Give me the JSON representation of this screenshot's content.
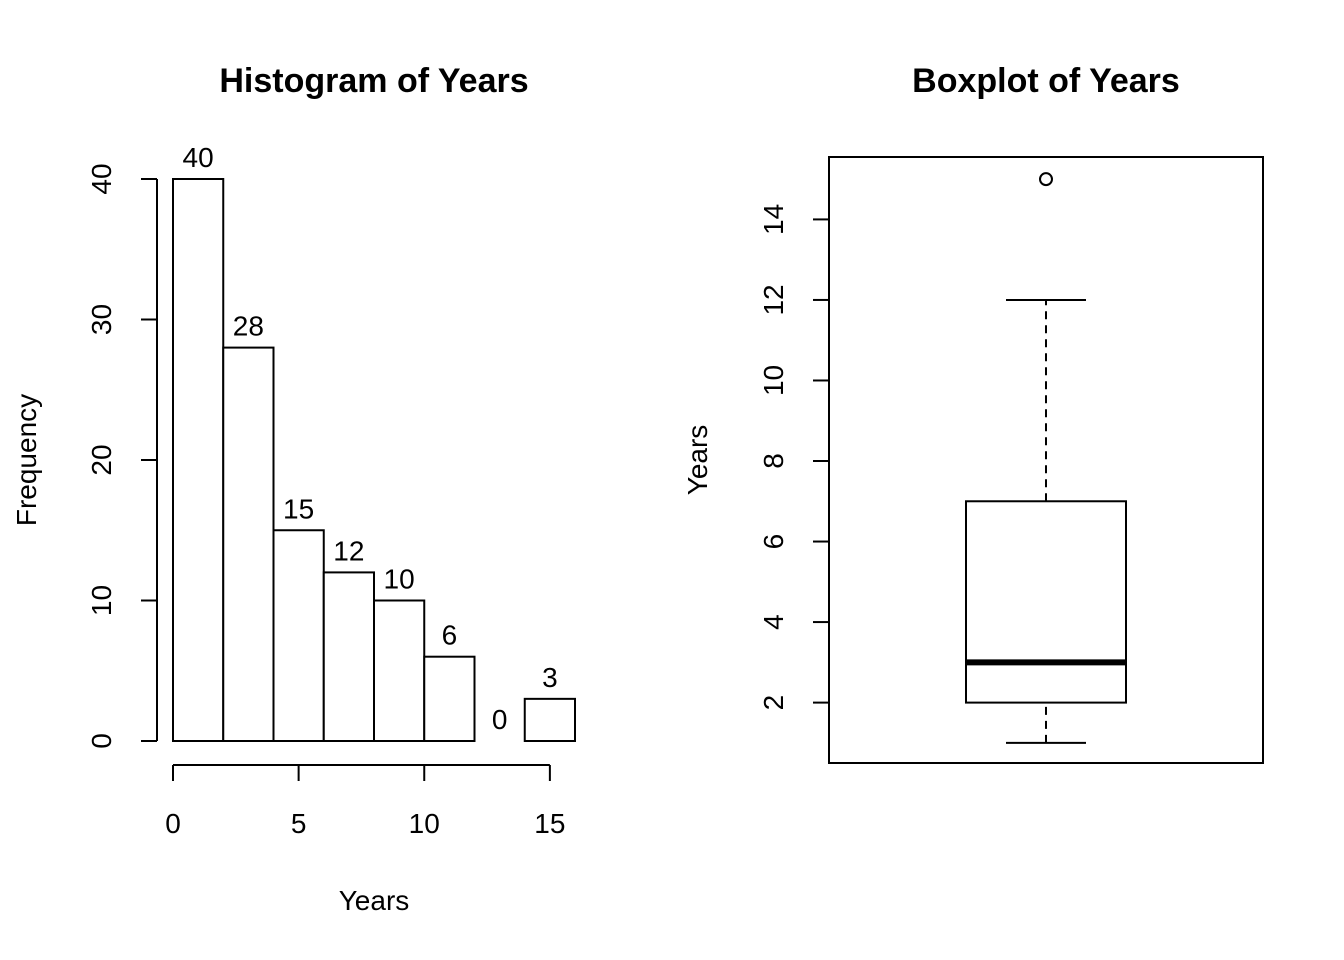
{
  "chart_data": [
    {
      "type": "bar",
      "subtype": "histogram",
      "title": "Histogram of Years",
      "xlabel": "Years",
      "ylabel": "Frequency",
      "bin_edges": [
        0,
        2,
        4,
        6,
        8,
        10,
        12,
        14,
        16
      ],
      "values": [
        40,
        28,
        15,
        12,
        10,
        6,
        0,
        3
      ],
      "data_labels": [
        "40",
        "28",
        "15",
        "12",
        "10",
        "6",
        "0",
        "3"
      ],
      "xlim": [
        0,
        16
      ],
      "ylim": [
        0,
        40
      ],
      "x_ticks": [
        0,
        5,
        10,
        15
      ],
      "x_tick_labels": [
        "0",
        "5",
        "10",
        "15"
      ],
      "y_ticks": [
        0,
        10,
        20,
        30,
        40
      ],
      "y_tick_labels": [
        "0",
        "10",
        "20",
        "30",
        "40"
      ],
      "grid": false
    },
    {
      "type": "boxplot",
      "title": "Boxplot of Years",
      "xlabel": "",
      "ylabel": "Years",
      "stats": {
        "lower_whisker": 1,
        "q1": 2,
        "median": 3,
        "q3": 7,
        "upper_whisker": 12
      },
      "outliers": [
        15
      ],
      "ylim": [
        0.5,
        15.55
      ],
      "y_ticks": [
        2,
        4,
        6,
        8,
        10,
        12,
        14
      ],
      "y_tick_labels": [
        "2",
        "4",
        "6",
        "8",
        "10",
        "12",
        "14"
      ],
      "grid": false
    }
  ]
}
